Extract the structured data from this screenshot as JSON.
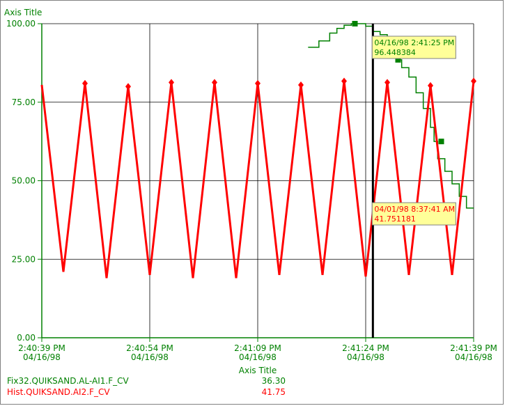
{
  "colors": {
    "axis_green": "#008000",
    "series1": "#008000",
    "series2": "#ff0000",
    "tooltip_bg": "#ffff99",
    "cursor": "#000000",
    "grid": "#000000"
  },
  "chart_data": {
    "type": "line",
    "title": "",
    "ylabel": "Axis Title",
    "xlabel": "Axis Title",
    "ylim": [
      0,
      100
    ],
    "y_ticks": [
      "100.00",
      "75.00",
      "50.00",
      "25.00",
      "0.00"
    ],
    "x_ticks": [
      {
        "time": "2:40:39 PM",
        "date": "04/16/98"
      },
      {
        "time": "2:40:54 PM",
        "date": "04/16/98"
      },
      {
        "time": "2:41:09 PM",
        "date": "04/16/98"
      },
      {
        "time": "2:41:24 PM",
        "date": "04/16/98"
      },
      {
        "time": "2:41:39 PM",
        "date": "04/16/98"
      }
    ],
    "xlim_seconds": [
      0,
      60
    ],
    "cursor_x": 46,
    "grid": true,
    "series": [
      {
        "name": "Fix32.QUIKSAND.AL-AI1.F_CV",
        "legend_value": "36.30",
        "step": true,
        "x": [
          37,
          38.5,
          40,
          41,
          42,
          43,
          44,
          45,
          46,
          47,
          48,
          49,
          49.5,
          50,
          51,
          52,
          53,
          54,
          54.5,
          55,
          56,
          57,
          58,
          59,
          60
        ],
        "y": [
          92.5,
          94.5,
          97,
          98.5,
          99.5,
          100,
          100,
          99.2,
          97.5,
          96.5,
          93.5,
          90.5,
          88.5,
          86,
          83,
          78,
          73,
          67,
          62.5,
          57,
          53,
          49,
          45,
          41.3,
          41.3
        ],
        "markers": [
          {
            "x": 43.5,
            "y": 100
          },
          {
            "x": 49.5,
            "y": 88.5
          },
          {
            "x": 55.5,
            "y": 62.5
          }
        ]
      },
      {
        "name": "Hist.QUIKSAND.AI2.F_CV",
        "legend_value": "41.75",
        "step": false,
        "x": [
          0,
          3,
          6,
          9,
          12,
          15,
          18,
          21,
          24,
          27,
          30,
          33,
          36,
          39,
          42,
          45,
          48,
          51,
          54,
          57,
          60
        ],
        "y": [
          80.5,
          21,
          81,
          19,
          80,
          20,
          81.3,
          19,
          81.3,
          19,
          81,
          20,
          80.5,
          20,
          81.7,
          19.5,
          81.3,
          20,
          80.3,
          20,
          81.7
        ],
        "marker_indices": [
          2,
          4,
          6,
          8,
          10,
          12,
          14,
          16,
          18,
          20
        ]
      }
    ],
    "tooltips": [
      {
        "series": 0,
        "line1": "04/16/98 2:41:25 PM",
        "line2": "96.448384",
        "x": 46,
        "y": 100
      },
      {
        "series": 1,
        "line1": "04/01/98 8:37:41 AM",
        "line2": "41.751181",
        "x": 46,
        "y": 47
      }
    ]
  }
}
